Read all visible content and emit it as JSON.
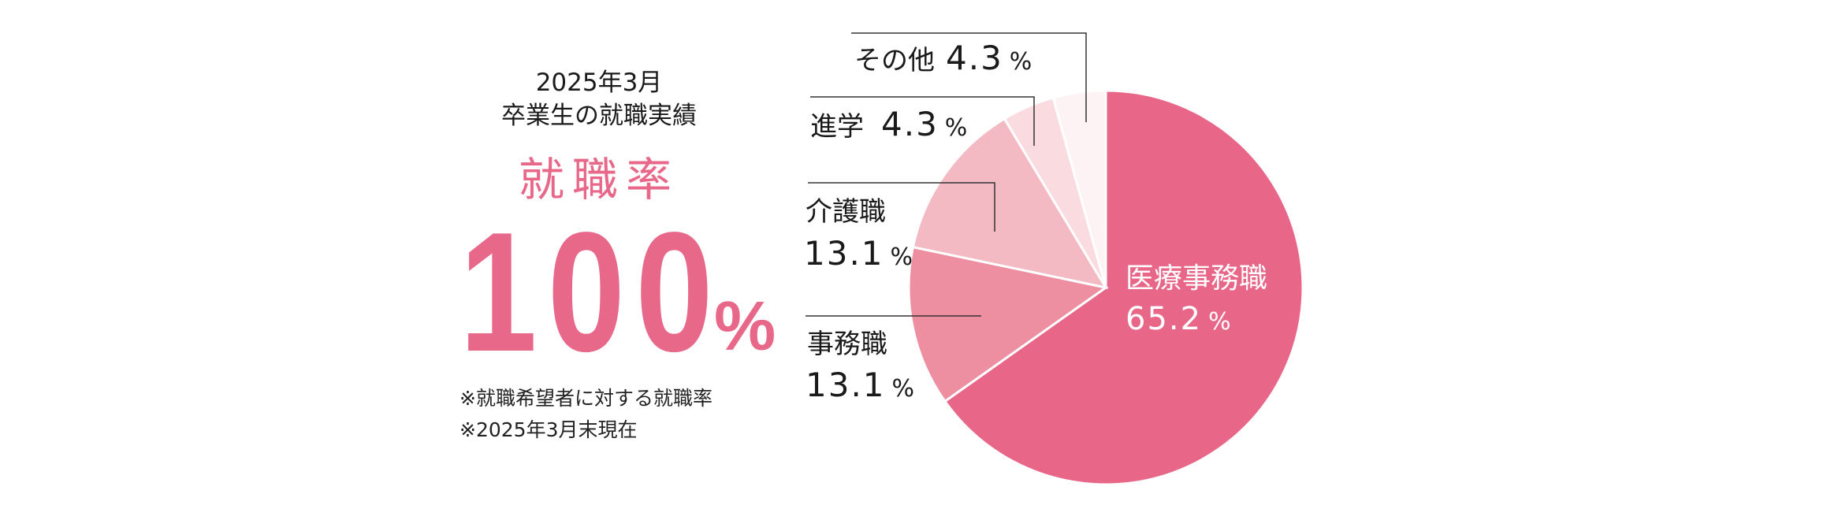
{
  "header": {
    "line1": "2025年3月",
    "line2": "卒業生の就職実績"
  },
  "rate": {
    "label": "就職率",
    "value": "100",
    "unit": "%"
  },
  "notes": [
    "※就職希望者に対する就職率",
    "※2025年3月末現在"
  ],
  "colors": {
    "accent": "#e8688a",
    "line": "#333333",
    "text": "#1a1a1a"
  },
  "chart_data": {
    "type": "pie",
    "title": "",
    "start": "12 o'clock, clockwise",
    "slices": [
      {
        "name": "医療事務職",
        "value": 65.2,
        "label_value": "65.2",
        "unit": "%",
        "color": "#e86688"
      },
      {
        "name": "事務職",
        "value": 13.1,
        "label_value": "13.1",
        "unit": "%",
        "color": "#ee8fa1"
      },
      {
        "name": "介護職",
        "value": 13.1,
        "label_value": "13.1",
        "unit": "%",
        "color": "#f4bac4"
      },
      {
        "name": "進学",
        "value": 4.3,
        "label_value": "4.3",
        "unit": "%",
        "color": "#fadbe0"
      },
      {
        "name": "その他",
        "value": 4.3,
        "label_value": "4.3",
        "unit": "%",
        "color": "#fef3f4"
      }
    ]
  }
}
